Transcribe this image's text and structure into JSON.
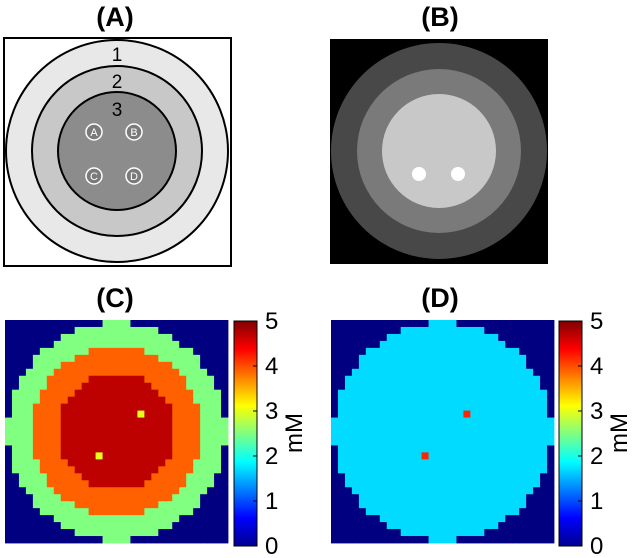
{
  "panels": {
    "a": {
      "title": "(A)",
      "rings": [
        "1",
        "2",
        "3"
      ],
      "vials": [
        "A",
        "B",
        "C",
        "D"
      ]
    },
    "b": {
      "title": "(B)"
    },
    "c": {
      "title": "(C)"
    },
    "d": {
      "title": "(D)"
    }
  },
  "colorbar": {
    "unit": "mM",
    "ticks": [
      "0",
      "1",
      "2",
      "3",
      "4",
      "5"
    ],
    "range": [
      0,
      5
    ]
  },
  "maps": {
    "c": {
      "background": 0,
      "ring1": 2.5,
      "ring2": 3.9,
      "ring3": 4.7,
      "vial_a": 3.0,
      "vial_b": 3.0
    },
    "d": {
      "background": 0,
      "ring1": 1.7,
      "ring2": 1.7,
      "ring3": 1.7,
      "vial_a": 4.2,
      "vial_b": 4.2
    }
  },
  "colors": {
    "background_map": "#00008f",
    "gray_ring1": "#e8e8e8",
    "gray_ring2": "#c8c8c8",
    "gray_ring3": "#8c8c8c"
  }
}
